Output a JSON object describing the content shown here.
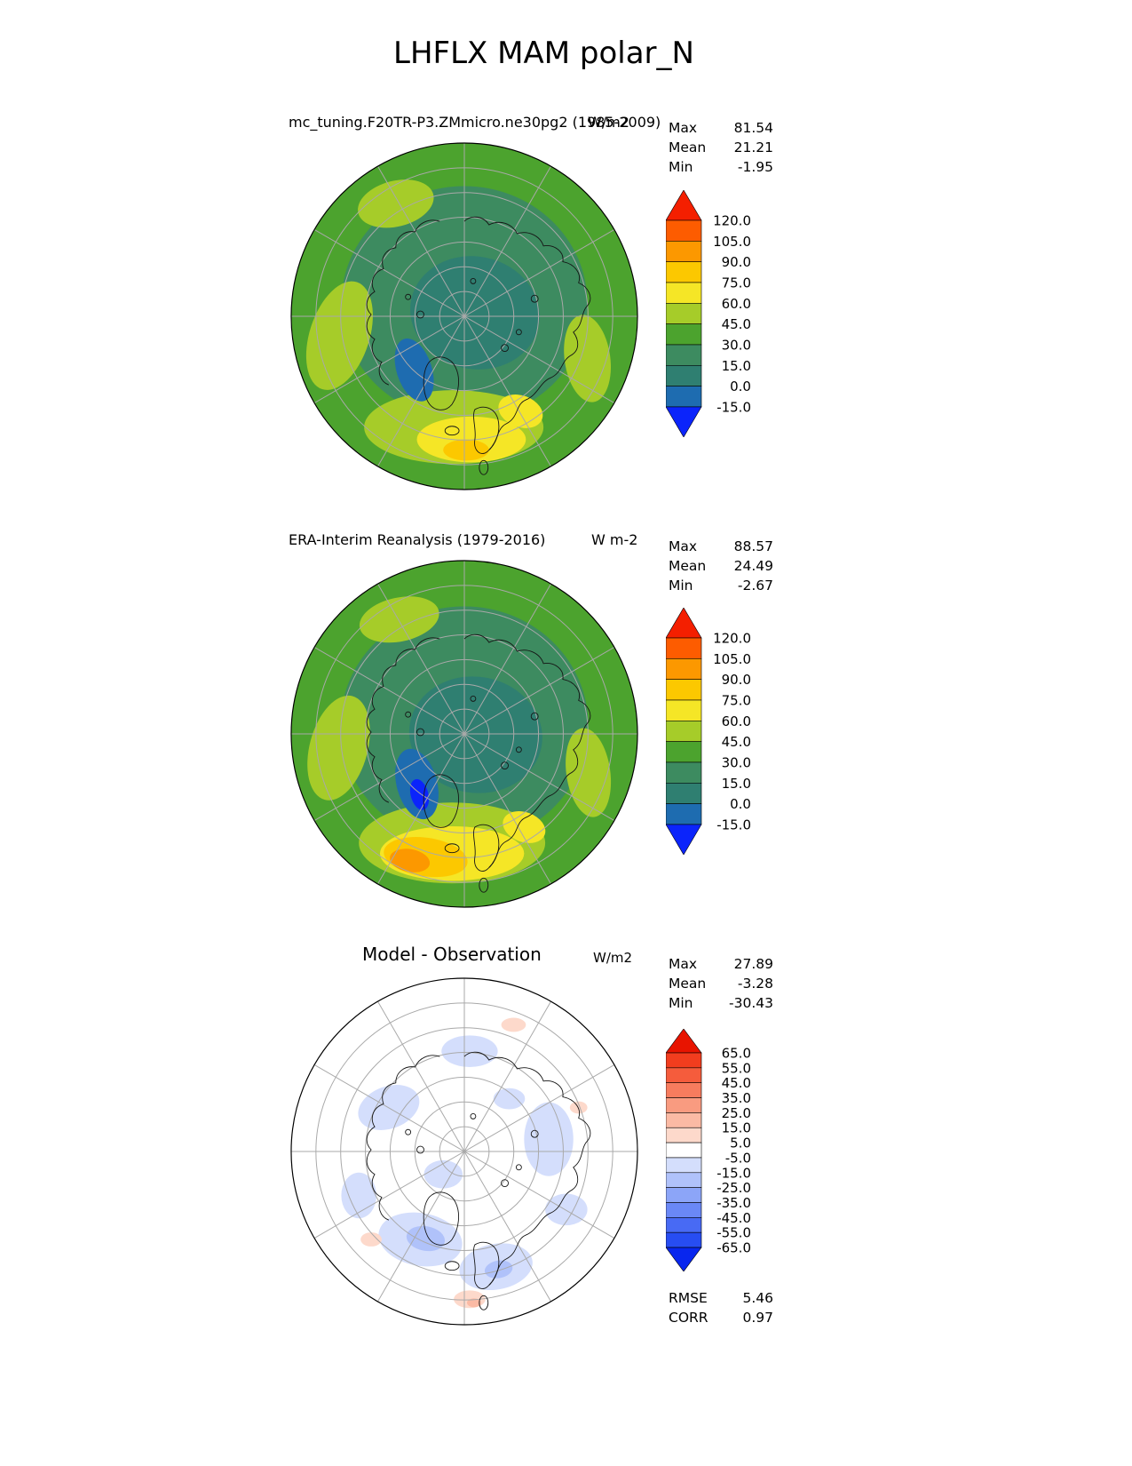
{
  "page_title": "LHFLX MAM polar_N",
  "chart_data": {
    "type": "heatmap",
    "subtype": "filled-contour polar stereographic maps, Northern Hemisphere polar cap",
    "variable": "LHFLX (latent heat flux)",
    "season": "MAM",
    "region": "polar_N",
    "panels": [
      {
        "id": "model",
        "title": "mc_tuning.F20TR-P3.ZMmicro.ne30pg2 (1985-2009)",
        "units": "W/m2",
        "stats": [
          {
            "label": "Max",
            "value": "81.54"
          },
          {
            "label": "Mean",
            "value": "21.21"
          },
          {
            "label": "Min",
            "value": "-1.95"
          }
        ],
        "colorbar": {
          "levels": [
            "120.0",
            "105.0",
            "90.0",
            "75.0",
            "60.0",
            "45.0",
            "30.0",
            "15.0",
            "0.0",
            "-15.0"
          ],
          "colors": [
            "#f41f00",
            "#fd5c00",
            "#fc9800",
            "#fcc800",
            "#f5e626",
            "#a6cc29",
            "#4ca32e",
            "#3d8b60",
            "#2f7f71",
            "#1e6cb0",
            "#0b24fb"
          ]
        }
      },
      {
        "id": "obs",
        "title": "ERA-Interim Reanalysis (1979-2016)",
        "units": "W m-2",
        "stats": [
          {
            "label": "Max",
            "value": "88.57"
          },
          {
            "label": "Mean",
            "value": "24.49"
          },
          {
            "label": "Min",
            "value": "-2.67"
          }
        ],
        "colorbar": {
          "levels": [
            "120.0",
            "105.0",
            "90.0",
            "75.0",
            "60.0",
            "45.0",
            "30.0",
            "15.0",
            "0.0",
            "-15.0"
          ],
          "colors": [
            "#f41f00",
            "#fd5c00",
            "#fc9800",
            "#fcc800",
            "#f5e626",
            "#a6cc29",
            "#4ca32e",
            "#3d8b60",
            "#2f7f71",
            "#1e6cb0",
            "#0b24fb"
          ]
        }
      },
      {
        "id": "diff",
        "title": "Model - Observation",
        "units": "W/m2",
        "stats": [
          {
            "label": "Max",
            "value": "27.89"
          },
          {
            "label": "Mean",
            "value": "-3.28"
          },
          {
            "label": "Min",
            "value": "-30.43"
          }
        ],
        "colorbar": {
          "levels": [
            "65.0",
            "55.0",
            "45.0",
            "35.0",
            "25.0",
            "15.0",
            "5.0",
            "-5.0",
            "-15.0",
            "-25.0",
            "-35.0",
            "-45.0",
            "-55.0",
            "-65.0"
          ],
          "colors": [
            "#e81400",
            "#f23d1e",
            "#f55c3c",
            "#f77c5e",
            "#f99b80",
            "#fbbaa4",
            "#fdd9cb",
            "#ffffff",
            "#d4defc",
            "#b0c2fa",
            "#8ca5f8",
            "#6a88f6",
            "#486af4",
            "#274df2",
            "#0826ee"
          ]
        },
        "skill_stats": [
          {
            "label": "RMSE",
            "value": "5.46"
          },
          {
            "label": "CORR",
            "value": "0.97"
          }
        ]
      }
    ]
  }
}
